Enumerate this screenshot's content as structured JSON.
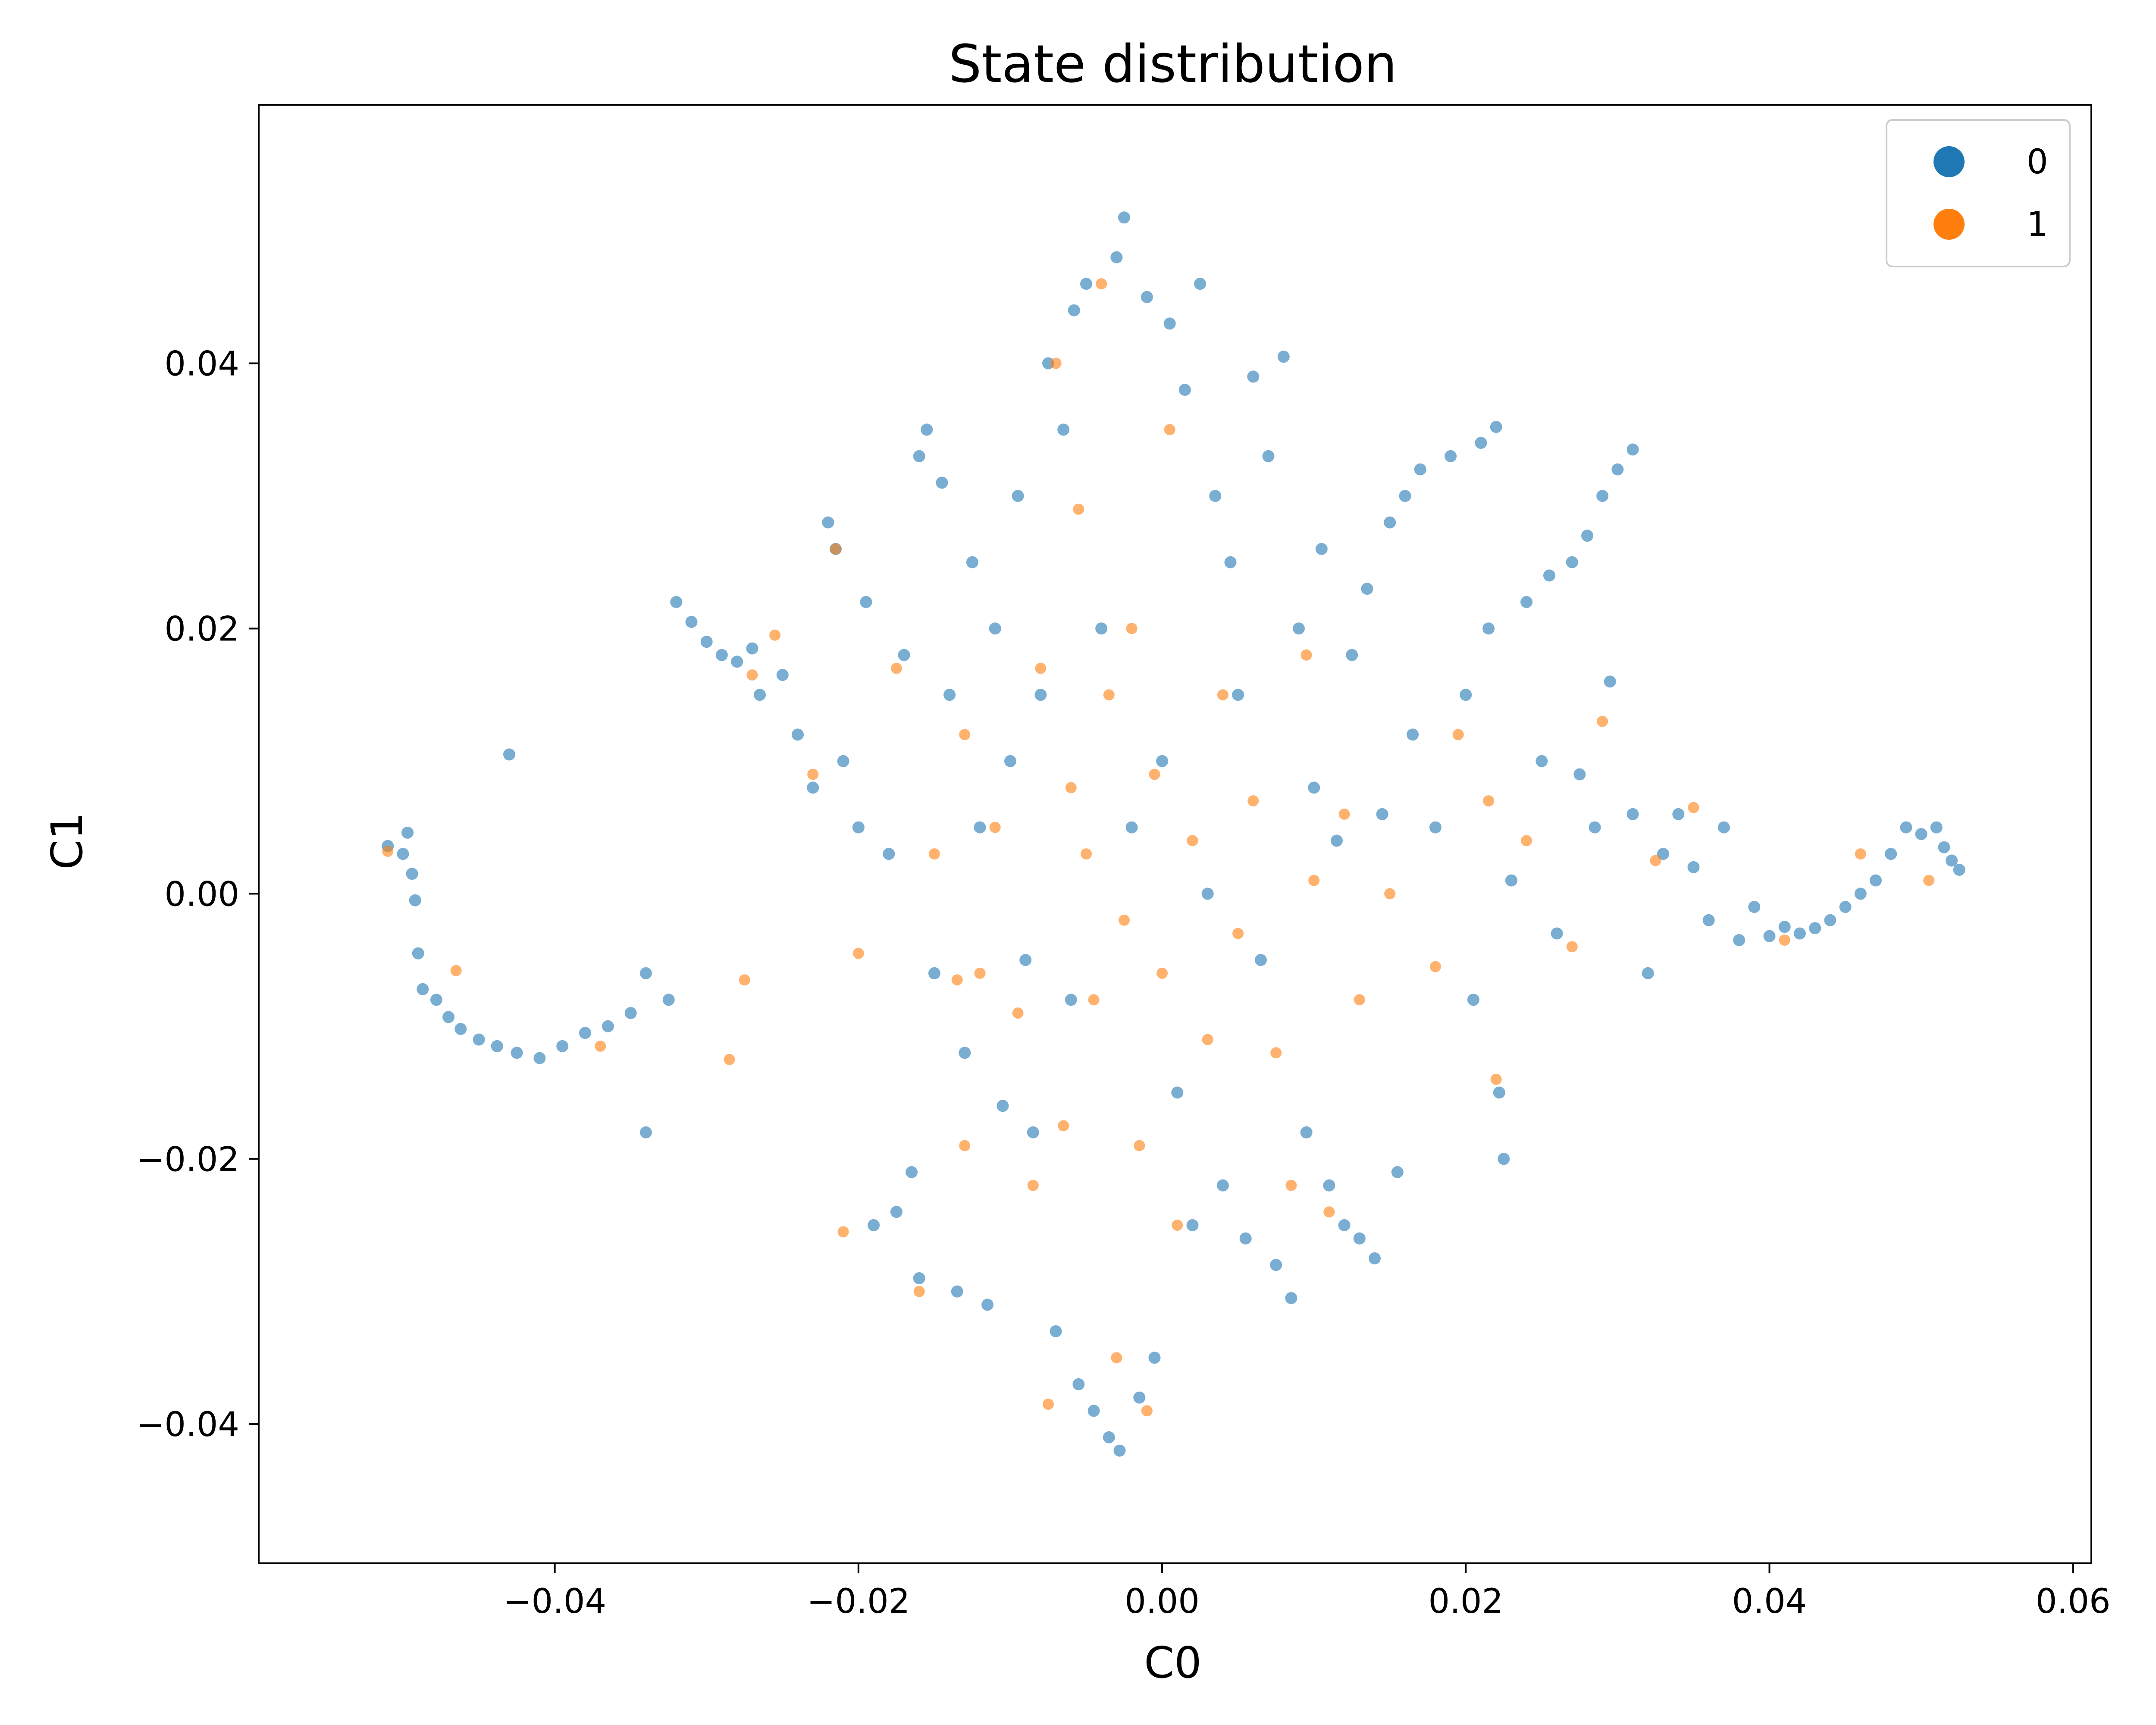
{
  "chart_data": {
    "type": "scatter",
    "title": "State distribution",
    "xlabel": "C0",
    "ylabel": "C1",
    "xlim": [
      -0.0595,
      0.0612
    ],
    "ylim": [
      -0.0505,
      0.0595
    ],
    "x_ticks": [
      -0.04,
      -0.02,
      0.0,
      0.02,
      0.04,
      0.06
    ],
    "x_tick_labels": [
      "−0.04",
      "−0.02",
      "0.00",
      "0.02",
      "0.04",
      "0.06"
    ],
    "y_ticks": [
      -0.04,
      -0.02,
      0.0,
      0.02,
      0.04
    ],
    "y_tick_labels": [
      "−0.04",
      "−0.02",
      "0.00",
      "0.02",
      "0.04"
    ],
    "grid": false,
    "legend_position": "top-right",
    "series": [
      {
        "name": "0",
        "color": "#1f77b4",
        "points": [
          [
            -0.051,
            0.0036
          ],
          [
            -0.05,
            0.003
          ],
          [
            -0.0497,
            0.0046
          ],
          [
            -0.0494,
            0.0015
          ],
          [
            -0.0492,
            -0.0005
          ],
          [
            -0.049,
            -0.0045
          ],
          [
            -0.0487,
            -0.0072
          ],
          [
            -0.0478,
            -0.008
          ],
          [
            -0.047,
            -0.0093
          ],
          [
            -0.0462,
            -0.0102
          ],
          [
            -0.045,
            -0.011
          ],
          [
            -0.0438,
            -0.0115
          ],
          [
            -0.043,
            0.0105
          ],
          [
            -0.0425,
            -0.012
          ],
          [
            -0.041,
            -0.0124
          ],
          [
            -0.0395,
            -0.0115
          ],
          [
            -0.038,
            -0.0105
          ],
          [
            -0.0365,
            -0.01
          ],
          [
            -0.035,
            -0.009
          ],
          [
            -0.034,
            -0.006
          ],
          [
            -0.034,
            -0.018
          ],
          [
            -0.0325,
            -0.008
          ],
          [
            -0.032,
            0.022
          ],
          [
            -0.031,
            0.0205
          ],
          [
            -0.03,
            0.019
          ],
          [
            -0.029,
            0.018
          ],
          [
            -0.028,
            0.0175
          ],
          [
            -0.027,
            0.0185
          ],
          [
            -0.0265,
            0.015
          ],
          [
            -0.025,
            0.0165
          ],
          [
            -0.024,
            0.012
          ],
          [
            -0.023,
            0.008
          ],
          [
            -0.022,
            0.028
          ],
          [
            -0.0215,
            0.026
          ],
          [
            -0.021,
            0.01
          ],
          [
            -0.02,
            0.005
          ],
          [
            -0.0195,
            0.022
          ],
          [
            -0.019,
            -0.025
          ],
          [
            -0.018,
            0.003
          ],
          [
            -0.0175,
            -0.024
          ],
          [
            -0.017,
            0.018
          ],
          [
            -0.0165,
            -0.021
          ],
          [
            -0.016,
            0.033
          ],
          [
            -0.016,
            -0.029
          ],
          [
            -0.0155,
            0.035
          ],
          [
            -0.015,
            -0.006
          ],
          [
            -0.0145,
            0.031
          ],
          [
            -0.014,
            0.015
          ],
          [
            -0.0135,
            -0.03
          ],
          [
            -0.013,
            -0.012
          ],
          [
            -0.0125,
            0.025
          ],
          [
            -0.012,
            0.005
          ],
          [
            -0.0115,
            -0.031
          ],
          [
            -0.011,
            0.02
          ],
          [
            -0.0105,
            -0.016
          ],
          [
            -0.01,
            0.01
          ],
          [
            -0.0095,
            0.03
          ],
          [
            -0.009,
            -0.005
          ],
          [
            -0.0085,
            -0.018
          ],
          [
            -0.008,
            0.015
          ],
          [
            -0.0075,
            0.04
          ],
          [
            -0.007,
            -0.033
          ],
          [
            -0.0065,
            0.035
          ],
          [
            -0.006,
            -0.008
          ],
          [
            -0.0058,
            0.044
          ],
          [
            -0.0055,
            -0.037
          ],
          [
            -0.005,
            0.046
          ],
          [
            -0.0045,
            -0.039
          ],
          [
            -0.004,
            0.02
          ],
          [
            -0.0035,
            -0.041
          ],
          [
            -0.003,
            0.048
          ],
          [
            -0.0028,
            -0.042
          ],
          [
            -0.0025,
            0.051
          ],
          [
            -0.002,
            0.005
          ],
          [
            -0.0015,
            -0.038
          ],
          [
            -0.001,
            0.045
          ],
          [
            -0.0005,
            -0.035
          ],
          [
            0.0,
            0.01
          ],
          [
            0.0005,
            0.043
          ],
          [
            0.001,
            -0.015
          ],
          [
            0.0015,
            0.038
          ],
          [
            0.002,
            -0.025
          ],
          [
            0.0025,
            0.046
          ],
          [
            0.003,
            0.0
          ],
          [
            0.0035,
            0.03
          ],
          [
            0.004,
            -0.022
          ],
          [
            0.0045,
            0.025
          ],
          [
            0.005,
            0.015
          ],
          [
            0.0055,
            -0.026
          ],
          [
            0.006,
            0.039
          ],
          [
            0.0065,
            -0.005
          ],
          [
            0.007,
            0.033
          ],
          [
            0.0075,
            -0.028
          ],
          [
            0.008,
            0.0405
          ],
          [
            0.0085,
            -0.0305
          ],
          [
            0.009,
            0.02
          ],
          [
            0.0095,
            -0.018
          ],
          [
            0.01,
            0.008
          ],
          [
            0.0105,
            0.026
          ],
          [
            0.011,
            -0.022
          ],
          [
            0.0115,
            0.004
          ],
          [
            0.012,
            -0.025
          ],
          [
            0.0125,
            0.018
          ],
          [
            0.013,
            -0.026
          ],
          [
            0.0135,
            0.023
          ],
          [
            0.014,
            -0.0275
          ],
          [
            0.0145,
            0.006
          ],
          [
            0.015,
            0.028
          ],
          [
            0.0155,
            -0.021
          ],
          [
            0.016,
            0.03
          ],
          [
            0.0165,
            0.012
          ],
          [
            0.017,
            0.032
          ],
          [
            0.018,
            0.005
          ],
          [
            0.019,
            0.033
          ],
          [
            0.02,
            0.015
          ],
          [
            0.0205,
            -0.008
          ],
          [
            0.021,
            0.034
          ],
          [
            0.0215,
            0.02
          ],
          [
            0.022,
            0.0352
          ],
          [
            0.0222,
            -0.015
          ],
          [
            0.0225,
            -0.02
          ],
          [
            0.023,
            0.001
          ],
          [
            0.024,
            0.022
          ],
          [
            0.025,
            0.01
          ],
          [
            0.0255,
            0.024
          ],
          [
            0.026,
            -0.003
          ],
          [
            0.027,
            0.025
          ],
          [
            0.0275,
            0.009
          ],
          [
            0.028,
            0.027
          ],
          [
            0.0285,
            0.005
          ],
          [
            0.029,
            0.03
          ],
          [
            0.0295,
            0.016
          ],
          [
            0.03,
            0.032
          ],
          [
            0.031,
            0.0335
          ],
          [
            0.031,
            0.006
          ],
          [
            0.032,
            -0.006
          ],
          [
            0.033,
            0.003
          ],
          [
            0.034,
            0.006
          ],
          [
            0.035,
            0.002
          ],
          [
            0.036,
            -0.002
          ],
          [
            0.037,
            0.005
          ],
          [
            0.038,
            -0.0035
          ],
          [
            0.039,
            -0.001
          ],
          [
            0.04,
            -0.0032
          ],
          [
            0.041,
            -0.0025
          ],
          [
            0.042,
            -0.003
          ],
          [
            0.043,
            -0.0026
          ],
          [
            0.044,
            -0.002
          ],
          [
            0.045,
            -0.001
          ],
          [
            0.046,
            0.0
          ],
          [
            0.047,
            0.001
          ],
          [
            0.048,
            0.003
          ],
          [
            0.049,
            0.005
          ],
          [
            0.05,
            0.0045
          ],
          [
            0.051,
            0.005
          ],
          [
            0.0515,
            0.0035
          ],
          [
            0.052,
            0.0025
          ],
          [
            0.0525,
            0.0018
          ]
        ]
      },
      {
        "name": "1",
        "color": "#ff7f0e",
        "points": [
          [
            -0.051,
            0.0032
          ],
          [
            -0.0465,
            -0.0058
          ],
          [
            -0.037,
            -0.0115
          ],
          [
            -0.0285,
            -0.0125
          ],
          [
            -0.0275,
            -0.0065
          ],
          [
            -0.027,
            0.0165
          ],
          [
            -0.0255,
            0.0195
          ],
          [
            -0.023,
            0.009
          ],
          [
            -0.0215,
            0.026
          ],
          [
            -0.021,
            -0.0255
          ],
          [
            -0.02,
            -0.0045
          ],
          [
            -0.0175,
            0.017
          ],
          [
            -0.016,
            -0.03
          ],
          [
            -0.015,
            0.003
          ],
          [
            -0.0135,
            -0.0065
          ],
          [
            -0.013,
            0.012
          ],
          [
            -0.013,
            -0.019
          ],
          [
            -0.012,
            -0.006
          ],
          [
            -0.011,
            0.005
          ],
          [
            -0.0095,
            -0.009
          ],
          [
            -0.0085,
            -0.022
          ],
          [
            -0.008,
            0.017
          ],
          [
            -0.0075,
            -0.0385
          ],
          [
            -0.007,
            0.04
          ],
          [
            -0.0065,
            -0.0175
          ],
          [
            -0.006,
            0.008
          ],
          [
            -0.0055,
            0.029
          ],
          [
            -0.005,
            0.003
          ],
          [
            -0.0045,
            -0.008
          ],
          [
            -0.004,
            0.046
          ],
          [
            -0.0035,
            0.015
          ],
          [
            -0.003,
            -0.035
          ],
          [
            -0.0025,
            -0.002
          ],
          [
            -0.002,
            0.02
          ],
          [
            -0.0015,
            -0.019
          ],
          [
            -0.001,
            -0.039
          ],
          [
            -0.0005,
            0.009
          ],
          [
            0.0,
            -0.006
          ],
          [
            0.0005,
            0.035
          ],
          [
            0.001,
            -0.025
          ],
          [
            0.002,
            0.004
          ],
          [
            0.003,
            -0.011
          ],
          [
            0.004,
            0.015
          ],
          [
            0.005,
            -0.003
          ],
          [
            0.006,
            0.007
          ],
          [
            0.0075,
            -0.012
          ],
          [
            0.0085,
            -0.022
          ],
          [
            0.0095,
            0.018
          ],
          [
            0.01,
            0.001
          ],
          [
            0.011,
            -0.024
          ],
          [
            0.012,
            0.006
          ],
          [
            0.013,
            -0.008
          ],
          [
            0.015,
            0.0
          ],
          [
            0.018,
            -0.0055
          ],
          [
            0.0195,
            0.012
          ],
          [
            0.0215,
            0.007
          ],
          [
            0.022,
            -0.014
          ],
          [
            0.024,
            0.004
          ],
          [
            0.027,
            -0.004
          ],
          [
            0.029,
            0.013
          ],
          [
            0.0325,
            0.0025
          ],
          [
            0.035,
            0.0065
          ],
          [
            0.041,
            -0.0035
          ],
          [
            0.046,
            0.003
          ],
          [
            0.0505,
            0.001
          ]
        ]
      }
    ]
  }
}
